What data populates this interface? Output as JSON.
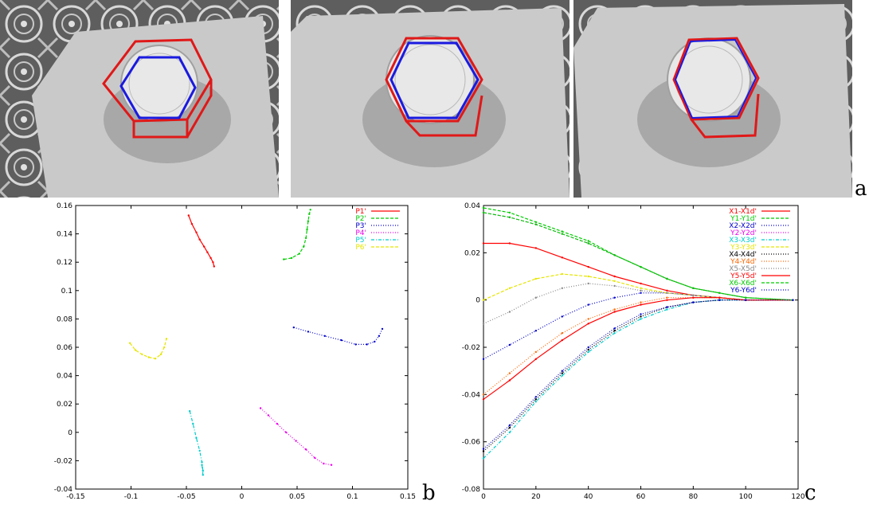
{
  "panel_labels": {
    "a": "a",
    "b": "b",
    "c": "c"
  },
  "photos": [
    {
      "name": "view-1-large-error",
      "outer_hexagon_color": "#e01818",
      "inner_hexagon_color": "#1a1ae0"
    },
    {
      "name": "view-2-medium-error",
      "outer_hexagon_color": "#e01818",
      "inner_hexagon_color": "#1a1ae0"
    },
    {
      "name": "view-3-converged",
      "outer_hexagon_color": "#e01818",
      "inner_hexagon_color": "#1a1ae0"
    }
  ],
  "chart_data": [
    {
      "type": "scatter",
      "panel": "b",
      "xlim": [
        -0.15,
        0.15
      ],
      "ylim": [
        -0.04,
        0.16
      ],
      "x_ticks": [
        "-0.15",
        "-0.1",
        "-0.05",
        "0",
        "0.05",
        "0.1",
        "0.15"
      ],
      "y_ticks": [
        "-0.04",
        "-0.02",
        "0",
        "0.02",
        "0.04",
        "0.06",
        "0.08",
        "0.1",
        "0.12",
        "0.14",
        "0.16"
      ],
      "x_tick_values": [
        -0.15,
        -0.1,
        -0.05,
        0,
        0.05,
        0.1,
        0.15
      ],
      "y_tick_values": [
        -0.04,
        -0.02,
        0,
        0.02,
        0.04,
        0.06,
        0.08,
        0.1,
        0.12,
        0.14,
        0.16
      ],
      "legend_position": "top-right",
      "series": [
        {
          "name": "P1'",
          "color": "#ff0000",
          "dash": "",
          "points": [
            [
              -0.048,
              0.153
            ],
            [
              -0.045,
              0.147
            ],
            [
              -0.041,
              0.141
            ],
            [
              -0.038,
              0.136
            ],
            [
              -0.034,
              0.131
            ],
            [
              -0.031,
              0.127
            ],
            [
              -0.028,
              0.123
            ],
            [
              -0.026,
              0.12
            ],
            [
              -0.025,
              0.117
            ]
          ]
        },
        {
          "name": "P2'",
          "color": "#00cc00",
          "dash": "4,2",
          "points": [
            [
              0.038,
              0.122
            ],
            [
              0.045,
              0.123
            ],
            [
              0.052,
              0.126
            ],
            [
              0.056,
              0.131
            ],
            [
              0.058,
              0.137
            ],
            [
              0.059,
              0.143
            ],
            [
              0.06,
              0.149
            ],
            [
              0.061,
              0.154
            ],
            [
              0.062,
              0.157
            ]
          ]
        },
        {
          "name": "P3'",
          "color": "#0000cc",
          "dash": "1,2",
          "points": [
            [
              0.047,
              0.074
            ],
            [
              0.06,
              0.071
            ],
            [
              0.075,
              0.068
            ],
            [
              0.09,
              0.065
            ],
            [
              0.103,
              0.062
            ],
            [
              0.113,
              0.062
            ],
            [
              0.12,
              0.064
            ],
            [
              0.124,
              0.068
            ],
            [
              0.127,
              0.073
            ]
          ]
        },
        {
          "name": "P4'",
          "color": "#ee00ee",
          "dash": "1,2",
          "points": [
            [
              0.017,
              0.017
            ],
            [
              0.024,
              0.012
            ],
            [
              0.032,
              0.006
            ],
            [
              0.04,
              0.0
            ],
            [
              0.049,
              -0.006
            ],
            [
              0.058,
              -0.012
            ],
            [
              0.066,
              -0.018
            ],
            [
              0.074,
              -0.022
            ],
            [
              0.081,
              -0.023
            ]
          ]
        },
        {
          "name": "P5'",
          "color": "#00cccc",
          "dash": "4,2,1,2",
          "points": [
            [
              -0.047,
              0.015
            ],
            [
              -0.044,
              0.006
            ],
            [
              -0.041,
              -0.004
            ],
            [
              -0.038,
              -0.013
            ],
            [
              -0.036,
              -0.021
            ],
            [
              -0.035,
              -0.027
            ],
            [
              -0.035,
              -0.03
            ],
            [
              -0.036,
              -0.023
            ]
          ]
        },
        {
          "name": "P6'",
          "color": "#e6e600",
          "dash": "4,2",
          "points": [
            [
              -0.101,
              0.063
            ],
            [
              -0.096,
              0.058
            ],
            [
              -0.09,
              0.055
            ],
            [
              -0.084,
              0.053
            ],
            [
              -0.078,
              0.052
            ],
            [
              -0.073,
              0.055
            ],
            [
              -0.07,
              0.06
            ],
            [
              -0.068,
              0.066
            ]
          ]
        }
      ]
    },
    {
      "type": "line",
      "panel": "c",
      "xlim": [
        0,
        120
      ],
      "ylim": [
        -0.08,
        0.04
      ],
      "x_ticks": [
        "0",
        "20",
        "40",
        "60",
        "80",
        "100",
        "120"
      ],
      "y_ticks": [
        "-0.08",
        "-0.06",
        "-0.04",
        "-0.02",
        "0",
        "0.02",
        "0.04"
      ],
      "x_tick_values": [
        0,
        20,
        40,
        60,
        80,
        100,
        120
      ],
      "y_tick_values": [
        -0.08,
        -0.06,
        -0.04,
        -0.02,
        0,
        0.02,
        0.04
      ],
      "legend_position": "top-right",
      "series": [
        {
          "name": "X1-X1d'",
          "color": "#ff0000",
          "dash": "",
          "points": [
            [
              0,
              0.024
            ],
            [
              10,
              0.024
            ],
            [
              20,
              0.022
            ],
            [
              30,
              0.018
            ],
            [
              40,
              0.014
            ],
            [
              50,
              0.01
            ],
            [
              60,
              0.007
            ],
            [
              70,
              0.004
            ],
            [
              80,
              0.002
            ],
            [
              90,
              0.001
            ],
            [
              100,
              0.0
            ],
            [
              118,
              0.0
            ]
          ]
        },
        {
          "name": "Y1-Y1d'",
          "color": "#00cc00",
          "dash": "4,2",
          "points": [
            [
              0,
              0.039
            ],
            [
              10,
              0.037
            ],
            [
              20,
              0.033
            ],
            [
              30,
              0.029
            ],
            [
              40,
              0.025
            ],
            [
              50,
              0.019
            ],
            [
              60,
              0.014
            ],
            [
              70,
              0.009
            ],
            [
              80,
              0.005
            ],
            [
              90,
              0.003
            ],
            [
              100,
              0.001
            ],
            [
              118,
              0.0
            ]
          ]
        },
        {
          "name": "X2-X2d'",
          "color": "#0000cc",
          "dash": "1,2",
          "points": [
            [
              0,
              -0.025
            ],
            [
              10,
              -0.019
            ],
            [
              20,
              -0.013
            ],
            [
              30,
              -0.007
            ],
            [
              40,
              -0.002
            ],
            [
              50,
              0.001
            ],
            [
              60,
              0.003
            ],
            [
              70,
              0.003
            ],
            [
              80,
              0.002
            ],
            [
              90,
              0.001
            ],
            [
              100,
              0.0
            ],
            [
              118,
              0.0
            ]
          ]
        },
        {
          "name": "Y2-Y2d'",
          "color": "#ee00ee",
          "dash": "1,2",
          "points": [
            [
              0,
              0.037
            ],
            [
              10,
              0.035
            ],
            [
              20,
              0.032
            ],
            [
              30,
              0.028
            ],
            [
              40,
              0.024
            ],
            [
              50,
              0.019
            ],
            [
              60,
              0.014
            ],
            [
              70,
              0.009
            ],
            [
              80,
              0.005
            ],
            [
              90,
              0.003
            ],
            [
              100,
              0.001
            ],
            [
              118,
              0.0
            ]
          ]
        },
        {
          "name": "X3-X3d'",
          "color": "#00cccc",
          "dash": "4,2,1,2",
          "points": [
            [
              0,
              -0.067
            ],
            [
              10,
              -0.056
            ],
            [
              20,
              -0.043
            ],
            [
              30,
              -0.032
            ],
            [
              40,
              -0.022
            ],
            [
              50,
              -0.014
            ],
            [
              60,
              -0.008
            ],
            [
              70,
              -0.004
            ],
            [
              80,
              -0.001
            ],
            [
              90,
              0.0
            ],
            [
              100,
              0.0
            ],
            [
              118,
              0.0
            ]
          ]
        },
        {
          "name": "Y3-Y3d'",
          "color": "#e6e600",
          "dash": "4,2",
          "points": [
            [
              0,
              0.0
            ],
            [
              10,
              0.005
            ],
            [
              20,
              0.009
            ],
            [
              30,
              0.011
            ],
            [
              40,
              0.01
            ],
            [
              50,
              0.008
            ],
            [
              60,
              0.005
            ],
            [
              70,
              0.003
            ],
            [
              80,
              0.002
            ],
            [
              90,
              0.001
            ],
            [
              100,
              0.0
            ],
            [
              118,
              0.0
            ]
          ]
        },
        {
          "name": "X4-X4d'",
          "color": "#000000",
          "dash": "1,2",
          "points": [
            [
              0,
              -0.064
            ],
            [
              10,
              -0.054
            ],
            [
              20,
              -0.042
            ],
            [
              30,
              -0.031
            ],
            [
              40,
              -0.021
            ],
            [
              50,
              -0.013
            ],
            [
              60,
              -0.007
            ],
            [
              70,
              -0.003
            ],
            [
              80,
              -0.001
            ],
            [
              90,
              0.0
            ],
            [
              100,
              0.0
            ],
            [
              118,
              0.0
            ]
          ]
        },
        {
          "name": "Y4-Y4d'",
          "color": "#ff6600",
          "dash": "1,2",
          "points": [
            [
              0,
              -0.04
            ],
            [
              10,
              -0.031
            ],
            [
              20,
              -0.022
            ],
            [
              30,
              -0.014
            ],
            [
              40,
              -0.008
            ],
            [
              50,
              -0.004
            ],
            [
              60,
              -0.001
            ],
            [
              70,
              0.001
            ],
            [
              80,
              0.001
            ],
            [
              90,
              0.001
            ],
            [
              100,
              0.0
            ],
            [
              118,
              0.0
            ]
          ]
        },
        {
          "name": "X5-X5d'",
          "color": "#888888",
          "dash": "1,2",
          "points": [
            [
              0,
              -0.01
            ],
            [
              10,
              -0.005
            ],
            [
              20,
              0.001
            ],
            [
              30,
              0.005
            ],
            [
              40,
              0.007
            ],
            [
              50,
              0.006
            ],
            [
              60,
              0.004
            ],
            [
              70,
              0.003
            ],
            [
              80,
              0.002
            ],
            [
              90,
              0.001
            ],
            [
              100,
              0.0
            ],
            [
              118,
              0.0
            ]
          ]
        },
        {
          "name": "Y5-Y5d'",
          "color": "#ff0000",
          "dash": "",
          "points": [
            [
              0,
              -0.042
            ],
            [
              10,
              -0.034
            ],
            [
              20,
              -0.025
            ],
            [
              30,
              -0.017
            ],
            [
              40,
              -0.01
            ],
            [
              50,
              -0.005
            ],
            [
              60,
              -0.002
            ],
            [
              70,
              0.0
            ],
            [
              80,
              0.001
            ],
            [
              90,
              0.001
            ],
            [
              100,
              0.0
            ],
            [
              118,
              0.0
            ]
          ]
        },
        {
          "name": "X6-X6d'",
          "color": "#00cc00",
          "dash": "4,2",
          "points": [
            [
              0,
              0.037
            ],
            [
              10,
              0.035
            ],
            [
              20,
              0.032
            ],
            [
              30,
              0.028
            ],
            [
              40,
              0.024
            ],
            [
              50,
              0.019
            ],
            [
              60,
              0.014
            ],
            [
              70,
              0.009
            ],
            [
              80,
              0.005
            ],
            [
              90,
              0.003
            ],
            [
              100,
              0.001
            ],
            [
              118,
              0.0
            ]
          ]
        },
        {
          "name": "Y6-Y6d'",
          "color": "#0000cc",
          "dash": "1,2",
          "points": [
            [
              0,
              -0.063
            ],
            [
              10,
              -0.053
            ],
            [
              20,
              -0.041
            ],
            [
              30,
              -0.03
            ],
            [
              40,
              -0.02
            ],
            [
              50,
              -0.012
            ],
            [
              60,
              -0.006
            ],
            [
              70,
              -0.003
            ],
            [
              80,
              -0.001
            ],
            [
              90,
              0.0
            ],
            [
              100,
              0.0
            ],
            [
              118,
              0.0
            ]
          ]
        }
      ]
    }
  ]
}
